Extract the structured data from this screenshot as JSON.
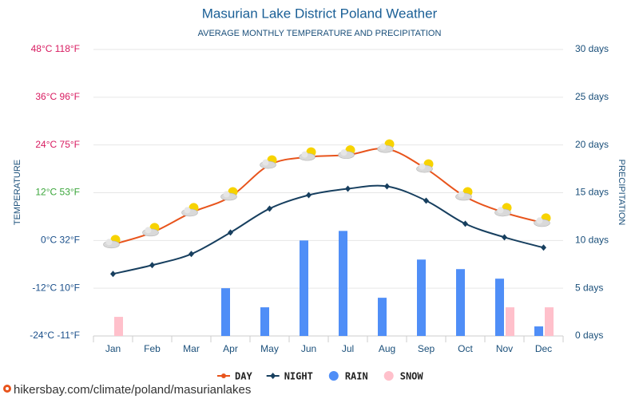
{
  "chart_data": {
    "type": "combo",
    "title": "Masurian Lake District Poland Weather",
    "subtitle": "AVERAGE MONTHLY TEMPERATURE AND PRECIPITATION",
    "y_label": "TEMPERATURE",
    "y2_label": "PRECIPITATION",
    "categories": [
      "Jan",
      "Feb",
      "Mar",
      "Apr",
      "May",
      "Jun",
      "Jul",
      "Aug",
      "Sep",
      "Oct",
      "Nov",
      "Dec"
    ],
    "ylim": [
      -24,
      48
    ],
    "yticks": [
      {
        "value": -24,
        "label": "-24°C -11°F"
      },
      {
        "value": -12,
        "label": "-12°C 10°F"
      },
      {
        "value": 0,
        "label": "0°C 32°F"
      },
      {
        "value": 12,
        "label": "12°C 53°F"
      },
      {
        "value": 24,
        "label": "24°C 75°F"
      },
      {
        "value": 36,
        "label": "36°C 96°F"
      },
      {
        "value": 48,
        "label": "48°C 118°F"
      }
    ],
    "ytick_colors": [
      "#1a4f8a",
      "#1a4f8a",
      "#1a4f8a",
      "#3aa63a",
      "#d81b60",
      "#d81b60",
      "#d81b60"
    ],
    "y2lim": [
      0,
      30
    ],
    "y2ticks": [
      {
        "value": 0,
        "label": "0 days"
      },
      {
        "value": 5,
        "label": "5 days"
      },
      {
        "value": 10,
        "label": "10 days"
      },
      {
        "value": 15,
        "label": "15 days"
      },
      {
        "value": 20,
        "label": "20 days"
      },
      {
        "value": 25,
        "label": "25 days"
      },
      {
        "value": 30,
        "label": "30 days"
      }
    ],
    "grid": true,
    "legend": "bottom",
    "series": [
      {
        "name": "DAY",
        "type": "line",
        "color": "#e8541c",
        "values": [
          -1,
          2,
          7,
          11,
          19,
          21,
          21.5,
          23,
          18,
          11,
          7,
          4.4
        ]
      },
      {
        "name": "NIGHT",
        "type": "line",
        "color": "#173f5f",
        "values": [
          -8.4,
          -6.2,
          -3.4,
          2,
          8,
          11.4,
          13,
          13.6,
          10,
          4.2,
          0.8,
          -1.8
        ]
      },
      {
        "name": "RAIN",
        "type": "bar",
        "axis": "y2",
        "color": "#4f8ef7",
        "values": [
          0,
          0,
          0,
          5,
          3,
          10,
          11,
          4,
          8,
          7,
          6,
          1
        ]
      },
      {
        "name": "SNOW",
        "type": "bar",
        "axis": "y2",
        "color": "#ffc0cb",
        "values": [
          2,
          0,
          0,
          0,
          0,
          0,
          0,
          0,
          0,
          0,
          3,
          3
        ]
      }
    ],
    "footer": "hikersbay.com/climate/poland/masurianlakes"
  }
}
